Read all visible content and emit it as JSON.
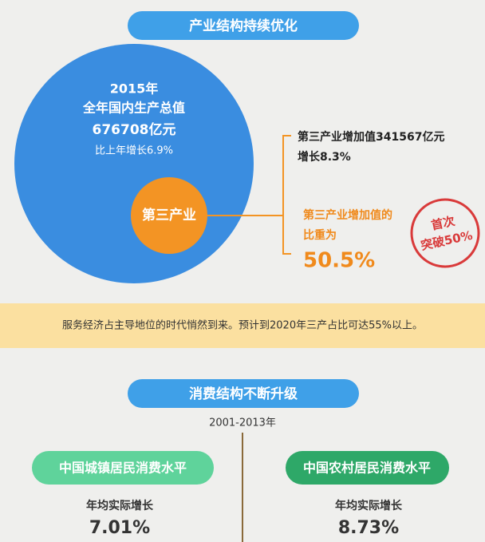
{
  "section1": {
    "title": "产业结构持续优化",
    "gdp": {
      "year": "2015年",
      "label": "全年国内生产总值",
      "value": "676708亿元",
      "growth": "比上年增长6.9%"
    },
    "tertiary": {
      "label": "第三产业",
      "added_value": "第三产业增加值341567亿元",
      "growth": "增长8.3%",
      "share_label_1": "第三产业增加值的",
      "share_label_2": "比重为",
      "share": "50.5%"
    },
    "stamp": {
      "line1": "首次",
      "line2": "突破50%"
    },
    "note": "服务经济占主导地位的时代悄然到来。预计到2020年三产占比可达55%以上。"
  },
  "section2": {
    "title": "消费结构不断升级",
    "period": "2001-2013年",
    "urban": {
      "label": "中国城镇居民消费水平",
      "sub": "年均实际增长",
      "value": "7.01%"
    },
    "rural": {
      "label": "中国农村居民消费水平",
      "sub": "年均实际增长",
      "value": "8.73%"
    }
  }
}
